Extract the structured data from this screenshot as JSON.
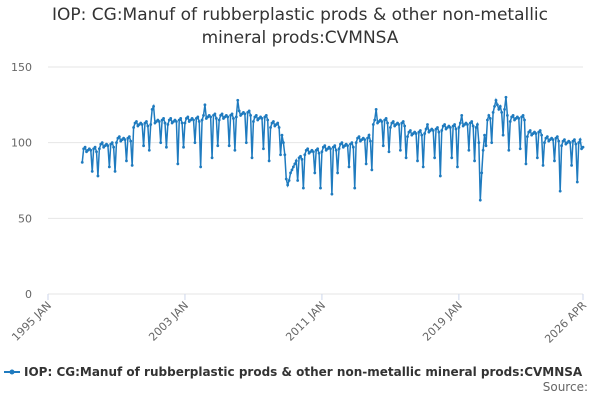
{
  "chart_data": {
    "type": "line",
    "title": "IOP: CG:Manuf of rubberplastic prods & other non-metallic mineral prods:CVMNSA",
    "source": "Source:",
    "categories": [
      "1995 JAN",
      null,
      null,
      null,
      null,
      null,
      null,
      null,
      null,
      null,
      null,
      null,
      null,
      null,
      null,
      null,
      null,
      null,
      null,
      null,
      null,
      null,
      null,
      null,
      null,
      null,
      null,
      null,
      null,
      null,
      null,
      null,
      null,
      null,
      null,
      null,
      null,
      null,
      null,
      null,
      null,
      null,
      null,
      null,
      null,
      null,
      null,
      null,
      null,
      null,
      null,
      null,
      null,
      null,
      null,
      null,
      null,
      null,
      null,
      null,
      null,
      null,
      null,
      null,
      null,
      null,
      null,
      null,
      null,
      null,
      null,
      null,
      null,
      null,
      null,
      null,
      null,
      null,
      null,
      null,
      null,
      null,
      null,
      null,
      null,
      null,
      null,
      null,
      null,
      null,
      null,
      null,
      null,
      null,
      null,
      null,
      "2003 JAN",
      null,
      null,
      null,
      null,
      null,
      null,
      null,
      null,
      null,
      null,
      null,
      null,
      null,
      null,
      null,
      null,
      null,
      null,
      null,
      null,
      null,
      null,
      null,
      null,
      null,
      null,
      null,
      null,
      null,
      null,
      null,
      null,
      null,
      null,
      null,
      null,
      null,
      null,
      null,
      null,
      null,
      null,
      null,
      null,
      null,
      null,
      null,
      null,
      null,
      null,
      null,
      null,
      null,
      null,
      null,
      null,
      null,
      null,
      null,
      null,
      null,
      null,
      null,
      null,
      null,
      null,
      null,
      null,
      null,
      null,
      null,
      null,
      null,
      null,
      null,
      null,
      null,
      null,
      null,
      null,
      null,
      null,
      null,
      null,
      null,
      null,
      null,
      null,
      null,
      null,
      null,
      null,
      null,
      null,
      null,
      "2011 JAN",
      null,
      null,
      null,
      null,
      null,
      null,
      null,
      null,
      null,
      null,
      null,
      null,
      null,
      null,
      null,
      null,
      null,
      null,
      null,
      null,
      null,
      null,
      null,
      null,
      null,
      null,
      null,
      null,
      null,
      null,
      null,
      null,
      null,
      null,
      null,
      null,
      null,
      null,
      null,
      null,
      null,
      null,
      null,
      null,
      null,
      null,
      null,
      null,
      null,
      null,
      null,
      null,
      null,
      null,
      null,
      null,
      null,
      null,
      null,
      null,
      null,
      null,
      null,
      null,
      null,
      null,
      null,
      null,
      null,
      null,
      null,
      null,
      null,
      null,
      null,
      null,
      null,
      null,
      null,
      null,
      null,
      null,
      null,
      null,
      null,
      null,
      null,
      null,
      null,
      null,
      null,
      null,
      null,
      null,
      null,
      "2019 JAN",
      null,
      null,
      null,
      null,
      null,
      null,
      null,
      null,
      null,
      null,
      null,
      null,
      null,
      null,
      null,
      null,
      null,
      null,
      null,
      null,
      null,
      null,
      null,
      null,
      null,
      null,
      null,
      null,
      null,
      null,
      null,
      null,
      null,
      null,
      null,
      null,
      null,
      null,
      null,
      null,
      null,
      null,
      null,
      null,
      null,
      null,
      null,
      null,
      null,
      null,
      null,
      null,
      null,
      null,
      null,
      null,
      null,
      null,
      null,
      null,
      null,
      null,
      null,
      null,
      null,
      null,
      null,
      null,
      null,
      null,
      null,
      null,
      null,
      null,
      null,
      null,
      null,
      null,
      null,
      null,
      null,
      null,
      null,
      null,
      null,
      null,
      "2026 APR"
    ],
    "series": [
      {
        "name": "IOP: CG:Manuf of rubberplastic prods & other non-metallic mineral prods:CVMNSA",
        "color": "#1f7bbf",
        "values": [
          null,
          null,
          null,
          null,
          null,
          null,
          null,
          null,
          null,
          null,
          null,
          null,
          null,
          null,
          null,
          null,
          null,
          null,
          null,
          null,
          null,
          null,
          null,
          null,
          87,
          96,
          97,
          94,
          95,
          96,
          95,
          81,
          96,
          97,
          94,
          78,
          96,
          99,
          100,
          97,
          98,
          99,
          98,
          84,
          99,
          100,
          97,
          81,
          100,
          103,
          104,
          101,
          102,
          103,
          102,
          88,
          103,
          104,
          101,
          85,
          110,
          113,
          114,
          111,
          112,
          113,
          112,
          98,
          113,
          114,
          111,
          95,
          112,
          122,
          124,
          113,
          114,
          115,
          114,
          100,
          115,
          116,
          113,
          97,
          112,
          115,
          116,
          113,
          114,
          115,
          114,
          86,
          115,
          116,
          113,
          97,
          113,
          116,
          117,
          114,
          115,
          116,
          115,
          100,
          116,
          117,
          114,
          84,
          115,
          118,
          125,
          116,
          117,
          118,
          117,
          90,
          118,
          119,
          116,
          98,
          115,
          118,
          119,
          116,
          117,
          118,
          117,
          98,
          118,
          119,
          116,
          95,
          117,
          128,
          121,
          118,
          119,
          120,
          119,
          100,
          120,
          121,
          118,
          90,
          114,
          117,
          118,
          115,
          116,
          117,
          116,
          96,
          117,
          118,
          115,
          88,
          110,
          113,
          114,
          111,
          112,
          113,
          110,
          92,
          105,
          100,
          92,
          76,
          72,
          75,
          80,
          82,
          84,
          86,
          88,
          75,
          90,
          91,
          89,
          70,
          92,
          95,
          96,
          93,
          94,
          95,
          94,
          80,
          95,
          96,
          93,
          70,
          94,
          97,
          98,
          95,
          96,
          97,
          96,
          66,
          97,
          98,
          95,
          80,
          96,
          99,
          100,
          97,
          98,
          99,
          98,
          84,
          99,
          100,
          97,
          70,
          100,
          103,
          104,
          101,
          102,
          103,
          102,
          86,
          103,
          105,
          101,
          82,
          112,
          115,
          122,
          113,
          114,
          115,
          114,
          98,
          115,
          116,
          113,
          94,
          110,
          113,
          114,
          111,
          112,
          113,
          112,
          95,
          113,
          114,
          111,
          90,
          104,
          107,
          108,
          105,
          106,
          107,
          106,
          88,
          107,
          108,
          105,
          84,
          106,
          109,
          112,
          107,
          108,
          109,
          108,
          90,
          109,
          110,
          107,
          78,
          108,
          111,
          112,
          109,
          110,
          111,
          110,
          90,
          111,
          112,
          109,
          84,
          110,
          113,
          118,
          111,
          112,
          113,
          112,
          95,
          113,
          114,
          111,
          88,
          110,
          112,
          100,
          62,
          80,
          95,
          105,
          98,
          115,
          118,
          116,
          100,
          120,
          124,
          128,
          125,
          122,
          124,
          120,
          105,
          122,
          130,
          118,
          95,
          114,
          117,
          118,
          115,
          116,
          117,
          116,
          96,
          117,
          118,
          115,
          86,
          104,
          107,
          108,
          105,
          106,
          107,
          106,
          90,
          107,
          108,
          105,
          85,
          100,
          103,
          104,
          101,
          102,
          103,
          102,
          88,
          103,
          104,
          101,
          68,
          98,
          101,
          102,
          99,
          100,
          101,
          100,
          85,
          101,
          102,
          99,
          74,
          100,
          102,
          96,
          97
        ]
      }
    ],
    "ylim": [
      0,
      150
    ],
    "yticks": [
      0,
      50,
      100,
      150
    ],
    "grid": true
  }
}
